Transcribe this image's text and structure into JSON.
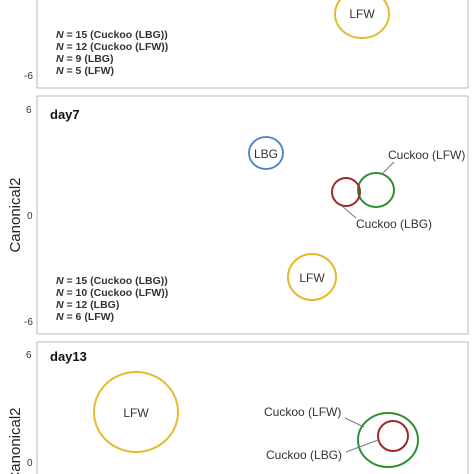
{
  "chart_data": [
    {
      "type": "scatter",
      "title": "",
      "ylabel": "",
      "y_ticks": [
        "-6"
      ],
      "groups": [
        {
          "label": "LFW",
          "x": 0.7,
          "y": 4.6,
          "color": "#e3bb2f"
        }
      ],
      "n_legend": [
        {
          "prefix": "N",
          "text": " = 15  (Cuckoo (LBG))"
        },
        {
          "prefix": "N",
          "text": " = 12 (Cuckoo (LFW))"
        },
        {
          "prefix": "N",
          "text": " =  9 (LBG)"
        },
        {
          "prefix": "N",
          "text": " = 5 (LFW)"
        }
      ]
    },
    {
      "type": "scatter",
      "title": "day7",
      "ylabel": "",
      "ylim": [
        -6,
        6
      ],
      "y_ticks": [
        "6",
        "0",
        "-6"
      ],
      "groups": [
        {
          "label": "LBG",
          "x": -1.2,
          "y": 3.5,
          "color": "#4f7fc6"
        },
        {
          "label": "Cuckoo (LFW)",
          "x": 2.4,
          "y": 1.4,
          "color": "#2f8f33"
        },
        {
          "label": "Cuckoo (LBG)",
          "x": 1.8,
          "y": 1.3,
          "color": "#a02828"
        },
        {
          "label": "LFW",
          "x": 0.2,
          "y": -3.5,
          "color": "#e3bb2f"
        }
      ],
      "n_legend": [
        {
          "prefix": "N",
          "text": " = 15 (Cuckoo (LBG))"
        },
        {
          "prefix": "N",
          "text": " = 10 (Cuckoo (LFW))"
        },
        {
          "prefix": "N",
          "text": " = 12 (LBG)"
        },
        {
          "prefix": "N",
          "text": " = 6 (LFW)"
        }
      ]
    },
    {
      "type": "scatter",
      "title": "day13",
      "ylabel": "Canonical2",
      "y_ticks": [
        "6",
        "0"
      ],
      "groups": [
        {
          "label": "LFW",
          "x": -4.5,
          "y": 2.7,
          "color": "#e3bb2f"
        },
        {
          "label": "Cuckoo (LFW)",
          "x": 2.7,
          "y": 0.9,
          "color": "#2f8f33"
        },
        {
          "label": "Cuckoo (LBG)",
          "x": 2.9,
          "y": 1.3,
          "color": "#a02828"
        }
      ]
    }
  ],
  "shared_axis": {
    "ylabel": "Canonical2"
  }
}
